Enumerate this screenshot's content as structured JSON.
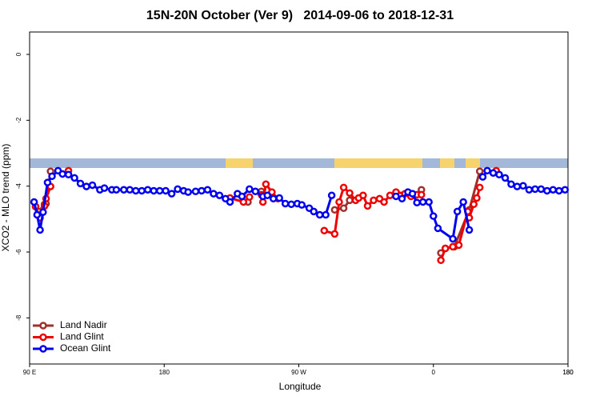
{
  "chart_data": {
    "type": "line",
    "title": "15N-20N October (Ver 9)   2014-09-06 to 2018-12-31",
    "x_label": "Longitude",
    "y_label": "XCO2 - MLO trend (ppm)",
    "xlim": [
      90,
      450
    ],
    "ylim": [
      -9.4,
      0.68
    ],
    "xticks": [
      {
        "value": 90,
        "label": "90 E"
      },
      180,
      {
        "value": 270,
        "label": "90 W"
      },
      {
        "value": 360,
        "label": "0"
      },
      {
        "value": 450,
        "label": "180"
      },
      {
        "value": 450,
        "label": "180"
      }
    ],
    "yticks": [
      0,
      -2,
      -4,
      -6,
      -8
    ],
    "legend": "bottom-left",
    "series": [
      {
        "name": "Land Nadir",
        "color": "#a0302c",
        "x": [
          94,
          96,
          100,
          101,
          104,
          null,
          236,
          null,
          245,
          null,
          294,
          300,
          304,
          null,
          352,
          null,
          365,
          368,
          374,
          384,
          391
        ],
        "values": [
          -4.62,
          -4.77,
          -4.55,
          -4.53,
          -3.55,
          null,
          -4.48,
          null,
          -4.16,
          null,
          -4.72,
          -4.67,
          -4.43,
          null,
          -4.11,
          null,
          -6.03,
          -5.89,
          -5.84,
          -4.72,
          -3.55
        ]
      },
      {
        "name": "Land Glint",
        "color": "#ee0000",
        "x": [
          94,
          97,
          100,
          101,
          104,
          null,
          116,
          null,
          224,
          233,
          237,
          null,
          245,
          246,
          248,
          252,
          256,
          null,
          287,
          294,
          297,
          300,
          304,
          308,
          310,
          313,
          316,
          320,
          324,
          327,
          331,
          335,
          341,
          345,
          349,
          352,
          null,
          365,
          368,
          373,
          377,
          383,
          384,
          387,
          389,
          391,
          null,
          402
        ],
        "values": [
          -4.62,
          -4.96,
          -4.6,
          -4.38,
          -4.01,
          null,
          -3.53,
          null,
          -4.36,
          -4.48,
          -4.33,
          null,
          -4.26,
          -4.48,
          -3.94,
          -4.18,
          -4.38,
          null,
          -5.35,
          -5.45,
          -4.48,
          -4.04,
          -4.21,
          -4.43,
          -4.36,
          -4.28,
          -4.6,
          -4.43,
          -4.38,
          -4.48,
          -4.28,
          -4.18,
          -4.23,
          -4.31,
          -4.26,
          -4.26,
          null,
          -6.25,
          -5.89,
          -5.84,
          -5.79,
          -4.77,
          -4.96,
          -4.55,
          -4.36,
          -4.04,
          null,
          -3.53
        ]
      },
      {
        "name": "Ocean Glint",
        "color": "#0000ee",
        "x": [
          93,
          95,
          97,
          99,
          102,
          105,
          109,
          112,
          116,
          120,
          124,
          128,
          132,
          137,
          140,
          145,
          148,
          153,
          157,
          161,
          165,
          169,
          173,
          177,
          181,
          185,
          189,
          193,
          196,
          201,
          205,
          209,
          213,
          217,
          221,
          224,
          229,
          232,
          237,
          241,
          246,
          249,
          253,
          257,
          261,
          265,
          269,
          272,
          277,
          280,
          284,
          288,
          292,
          null,
          335,
          339,
          343,
          346,
          349,
          353,
          357,
          360,
          363,
          373,
          376,
          380,
          384,
          null,
          393,
          396,
          400,
          404,
          408,
          412,
          416,
          420,
          424,
          428,
          432,
          436,
          440,
          444,
          448
        ],
        "values": [
          -4.48,
          -4.87,
          -5.33,
          -4.79,
          -3.89,
          -3.7,
          -3.53,
          -3.63,
          -3.65,
          -3.75,
          -3.92,
          -4.01,
          -3.97,
          -4.11,
          -4.06,
          -4.11,
          -4.11,
          -4.11,
          -4.11,
          -4.14,
          -4.14,
          -4.11,
          -4.14,
          -4.14,
          -4.14,
          -4.23,
          -4.09,
          -4.14,
          -4.18,
          -4.16,
          -4.14,
          -4.11,
          -4.23,
          -4.28,
          -4.38,
          -4.48,
          -4.23,
          -4.31,
          -4.09,
          -4.16,
          -4.31,
          -4.28,
          -4.38,
          -4.36,
          -4.53,
          -4.55,
          -4.53,
          -4.57,
          -4.67,
          -4.77,
          -4.87,
          -4.87,
          -4.28,
          null,
          -4.31,
          -4.38,
          -4.18,
          -4.23,
          -4.5,
          -4.48,
          -4.48,
          -4.91,
          -5.28,
          -5.6,
          -4.77,
          -4.48,
          -5.33,
          null,
          -3.72,
          -3.53,
          -3.6,
          -3.65,
          -3.75,
          -3.94,
          -4.01,
          -3.99,
          -4.11,
          -4.09,
          -4.09,
          -4.14,
          -4.11,
          -4.14,
          -4.11
        ]
      }
    ]
  }
}
